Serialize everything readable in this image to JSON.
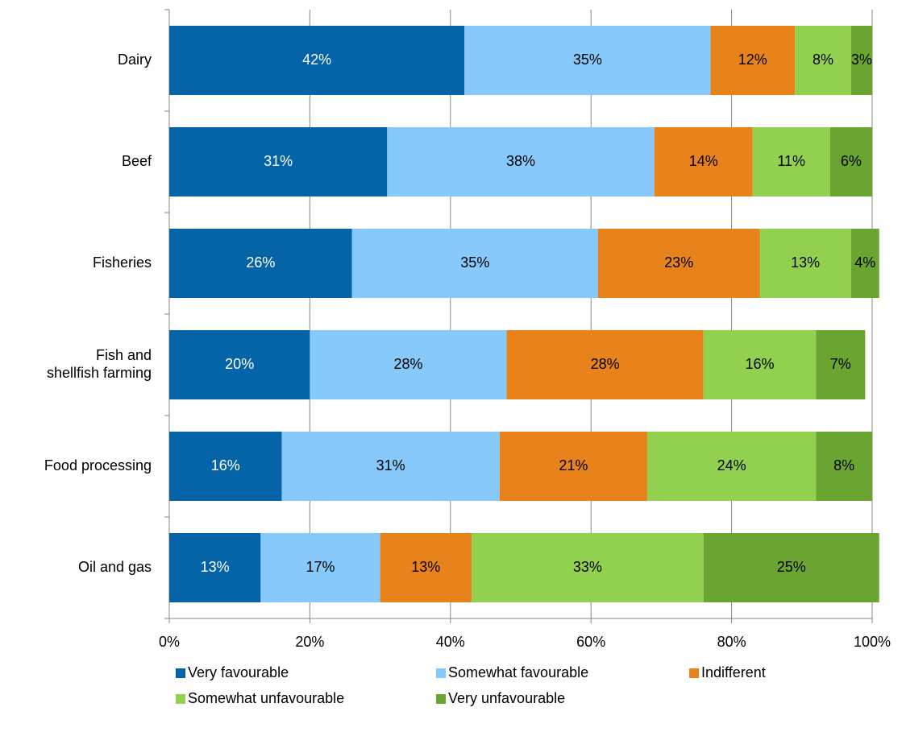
{
  "chart_data": {
    "type": "bar",
    "orientation": "horizontal",
    "stacked": true,
    "categories": [
      "Dairy",
      "Beef",
      "Fisheries",
      "Fish and\nshellfish farming",
      "Food processing",
      "Oil and gas"
    ],
    "series": [
      {
        "name": "Very favourable",
        "color": "#0563a8",
        "label_color": "#ffffff",
        "values": [
          42,
          31,
          26,
          20,
          16,
          13
        ],
        "value_labels": [
          "42%",
          "31%",
          "26%",
          "20%",
          "16%",
          "13%"
        ]
      },
      {
        "name": "Somewhat favourable",
        "color": "#87c9fb",
        "label_color": "#000000",
        "values": [
          35,
          38,
          35,
          28,
          31,
          17
        ],
        "value_labels": [
          "35%",
          "38%",
          "35%",
          "28%",
          "31%",
          "17%"
        ]
      },
      {
        "name": "Indifferent",
        "color": "#e8821a",
        "label_color": "#000000",
        "values": [
          12,
          14,
          23,
          28,
          21,
          13
        ],
        "value_labels": [
          "12%",
          "14%",
          "23%",
          "28%",
          "21%",
          "13%"
        ]
      },
      {
        "name": "Somewhat unfavourable",
        "color": "#92d050",
        "label_color": "#000000",
        "values": [
          8,
          11,
          13,
          16,
          24,
          33
        ],
        "value_labels": [
          "8%",
          "11%",
          "13%",
          "16%",
          "24%",
          "33%"
        ]
      },
      {
        "name": "Very unfavourable",
        "color": "#6aa532",
        "label_color": "#000000",
        "values": [
          3,
          6,
          4,
          7,
          8,
          25
        ],
        "value_labels": [
          "3%",
          "6%",
          "4%",
          "7%",
          "8%",
          "25%"
        ]
      }
    ],
    "xlim": [
      0,
      100
    ],
    "xticks": [
      {
        "value": 0,
        "label": "0%"
      },
      {
        "value": 20,
        "label": "20%"
      },
      {
        "value": 40,
        "label": "40%"
      },
      {
        "value": 60,
        "label": "60%"
      },
      {
        "value": 80,
        "label": "80%"
      },
      {
        "value": 100,
        "label": "100%"
      }
    ],
    "grid": true,
    "legend": "bottom"
  }
}
